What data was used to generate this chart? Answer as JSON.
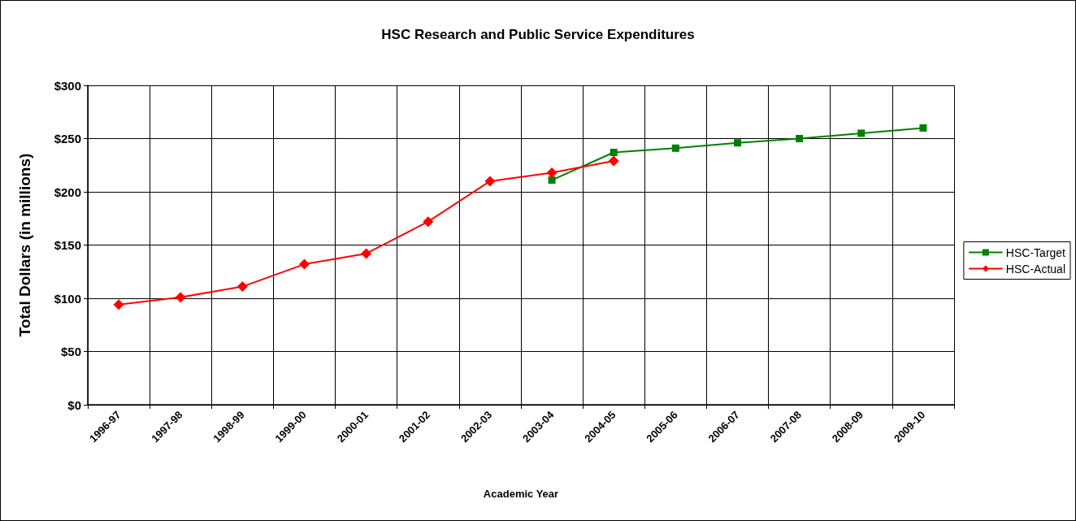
{
  "chart_data": {
    "type": "line",
    "title": "HSC Research and Public Service Expenditures",
    "xlabel": "Academic Year",
    "ylabel": "Total Dollars (in millions)",
    "categories": [
      "1996-97",
      "1997-98",
      "1998-99",
      "1999-00",
      "2000-01",
      "2001-02",
      "2002-03",
      "2003-04",
      "2004-05",
      "2005-06",
      "2006-07",
      "2007-08",
      "2008-09",
      "2009-10"
    ],
    "series": [
      {
        "name": "HSC-Target",
        "color": "#008000",
        "marker": "square",
        "values": [
          null,
          null,
          null,
          null,
          null,
          null,
          null,
          211,
          237,
          241,
          246,
          250,
          255,
          260
        ]
      },
      {
        "name": "HSC-Actual",
        "color": "#ff0000",
        "marker": "diamond",
        "values": [
          94,
          101,
          111,
          132,
          142,
          172,
          210,
          218,
          229,
          null,
          null,
          null,
          null,
          null
        ]
      }
    ],
    "ylim": [
      0,
      300
    ],
    "yticks": [
      {
        "value": 0,
        "label": "$0"
      },
      {
        "value": 50,
        "label": "$50"
      },
      {
        "value": 100,
        "label": "$100"
      },
      {
        "value": 150,
        "label": "$150"
      },
      {
        "value": 200,
        "label": "$200"
      },
      {
        "value": 250,
        "label": "$250"
      },
      {
        "value": 300,
        "label": "$300"
      }
    ],
    "grid": true,
    "legend": "right",
    "line_style": "solid"
  }
}
